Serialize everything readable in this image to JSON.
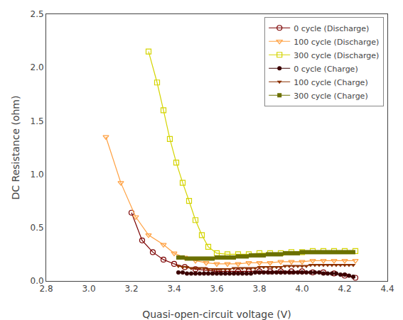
{
  "chart_data": {
    "type": "line",
    "xlabel": "Quasi-open-circuit voltage (V)",
    "ylabel": "DC Resistance (ohm)",
    "xlim": [
      2.8,
      4.4
    ],
    "ylim": [
      0.0,
      2.5
    ],
    "xticks": [
      2.8,
      {
        "value": 3.0,
        "label": "3.0"
      },
      3.2,
      3.4,
      3.6,
      3.8,
      {
        "value": 4.0,
        "label": "4.0"
      },
      4.2,
      4.4
    ],
    "yticks": [
      {
        "value": 0.0,
        "label": "0.0"
      },
      0.5,
      {
        "value": 1.0,
        "label": "1.0"
      },
      1.5,
      {
        "value": 2.0,
        "label": "2.0"
      },
      2.5
    ],
    "grid": false,
    "legend": "upper right",
    "series": [
      {
        "name": "0 cycle (Discharge)",
        "color": "#7B0000",
        "marker": "circle-open",
        "x": [
          3.2,
          3.25,
          3.3,
          3.35,
          3.4,
          3.45,
          3.5,
          3.55,
          3.6,
          3.65,
          3.7,
          3.75,
          3.8,
          3.85,
          3.9,
          3.95,
          4.0,
          4.05,
          4.1,
          4.15,
          4.2,
          4.25
        ],
        "values": [
          0.64,
          0.38,
          0.27,
          0.2,
          0.16,
          0.13,
          0.11,
          0.1,
          0.09,
          0.09,
          0.09,
          0.09,
          0.09,
          0.09,
          0.09,
          0.09,
          0.09,
          0.08,
          0.08,
          0.07,
          0.05,
          0.03
        ]
      },
      {
        "name": "100 cycle (Discharge)",
        "color": "#FFA040",
        "marker": "triangle-down-open",
        "x": [
          3.08,
          3.15,
          3.22,
          3.28,
          3.35,
          3.4,
          3.45,
          3.5,
          3.55,
          3.6,
          3.65,
          3.7,
          3.75,
          3.8,
          3.85,
          3.9,
          3.95,
          4.0,
          4.05,
          4.1,
          4.15,
          4.2,
          4.25
        ],
        "values": [
          1.35,
          0.92,
          0.6,
          0.43,
          0.34,
          0.26,
          0.22,
          0.19,
          0.17,
          0.16,
          0.16,
          0.16,
          0.17,
          0.17,
          0.17,
          0.18,
          0.18,
          0.18,
          0.19,
          0.19,
          0.19,
          0.19,
          0.19
        ]
      },
      {
        "name": "300 cycle (Discharge)",
        "color": "#D4D400",
        "marker": "square-open",
        "x": [
          3.28,
          3.32,
          3.35,
          3.38,
          3.41,
          3.44,
          3.47,
          3.5,
          3.53,
          3.56,
          3.6,
          3.65,
          3.7,
          3.75,
          3.8,
          3.85,
          3.9,
          3.95,
          4.0,
          4.05,
          4.1,
          4.15,
          4.2,
          4.25
        ],
        "values": [
          2.15,
          1.86,
          1.6,
          1.33,
          1.11,
          0.92,
          0.75,
          0.57,
          0.43,
          0.32,
          0.26,
          0.25,
          0.25,
          0.25,
          0.26,
          0.26,
          0.26,
          0.27,
          0.27,
          0.28,
          0.28,
          0.28,
          0.28,
          0.28
        ]
      },
      {
        "name": "0 cycle (Charge)",
        "color": "#3B0000",
        "marker": "circle",
        "x": [
          3.42,
          3.44,
          3.46,
          3.48,
          3.5,
          3.52,
          3.54,
          3.56,
          3.58,
          3.6,
          3.62,
          3.64,
          3.66,
          3.68,
          3.7,
          3.72,
          3.74,
          3.76,
          3.78,
          3.8,
          3.82,
          3.84,
          3.86,
          3.88,
          3.9,
          3.92,
          3.94,
          3.96,
          3.98,
          4.0,
          4.02,
          4.04,
          4.06,
          4.08,
          4.1,
          4.12,
          4.14,
          4.16,
          4.18,
          4.2,
          4.22,
          4.24
        ],
        "values": [
          0.08,
          0.08,
          0.07,
          0.07,
          0.07,
          0.07,
          0.07,
          0.07,
          0.07,
          0.07,
          0.07,
          0.07,
          0.07,
          0.07,
          0.07,
          0.07,
          0.07,
          0.07,
          0.08,
          0.08,
          0.08,
          0.08,
          0.08,
          0.08,
          0.08,
          0.08,
          0.08,
          0.08,
          0.08,
          0.08,
          0.08,
          0.08,
          0.08,
          0.08,
          0.07,
          0.07,
          0.07,
          0.07,
          0.06,
          0.06,
          0.05,
          0.04
        ]
      },
      {
        "name": "100 cycle (Charge)",
        "color": "#8B3000",
        "marker": "triangle-down",
        "x": [
          3.42,
          3.44,
          3.46,
          3.48,
          3.5,
          3.52,
          3.54,
          3.56,
          3.58,
          3.6,
          3.62,
          3.64,
          3.66,
          3.68,
          3.7,
          3.72,
          3.74,
          3.76,
          3.78,
          3.8,
          3.82,
          3.84,
          3.86,
          3.88,
          3.9,
          3.92,
          3.94,
          3.96,
          3.98,
          4.0,
          4.02,
          4.04,
          4.06,
          4.08,
          4.1,
          4.12,
          4.14,
          4.16,
          4.18,
          4.2,
          4.22,
          4.24
        ],
        "values": [
          0.14,
          0.13,
          0.13,
          0.12,
          0.12,
          0.12,
          0.12,
          0.11,
          0.11,
          0.11,
          0.11,
          0.11,
          0.11,
          0.12,
          0.12,
          0.12,
          0.12,
          0.12,
          0.12,
          0.13,
          0.13,
          0.13,
          0.13,
          0.13,
          0.13,
          0.14,
          0.14,
          0.14,
          0.14,
          0.14,
          0.14,
          0.15,
          0.15,
          0.15,
          0.15,
          0.15,
          0.15,
          0.15,
          0.15,
          0.15,
          0.15,
          0.15
        ]
      },
      {
        "name": "300 cycle (Charge)",
        "color": "#6B7000",
        "marker": "square",
        "x": [
          3.42,
          3.44,
          3.46,
          3.48,
          3.5,
          3.52,
          3.54,
          3.56,
          3.58,
          3.6,
          3.62,
          3.64,
          3.66,
          3.68,
          3.7,
          3.72,
          3.74,
          3.76,
          3.78,
          3.8,
          3.82,
          3.84,
          3.86,
          3.88,
          3.9,
          3.92,
          3.94,
          3.96,
          3.98,
          4.0,
          4.02,
          4.04,
          4.06,
          4.08,
          4.1,
          4.12,
          4.14,
          4.16,
          4.18,
          4.2,
          4.22,
          4.24
        ],
        "values": [
          0.22,
          0.22,
          0.21,
          0.21,
          0.21,
          0.21,
          0.21,
          0.21,
          0.21,
          0.22,
          0.22,
          0.22,
          0.22,
          0.22,
          0.23,
          0.23,
          0.23,
          0.24,
          0.24,
          0.24,
          0.24,
          0.25,
          0.25,
          0.25,
          0.25,
          0.26,
          0.26,
          0.26,
          0.26,
          0.27,
          0.27,
          0.27,
          0.27,
          0.27,
          0.27,
          0.27,
          0.27,
          0.27,
          0.27,
          0.27,
          0.27,
          0.27
        ]
      }
    ]
  }
}
